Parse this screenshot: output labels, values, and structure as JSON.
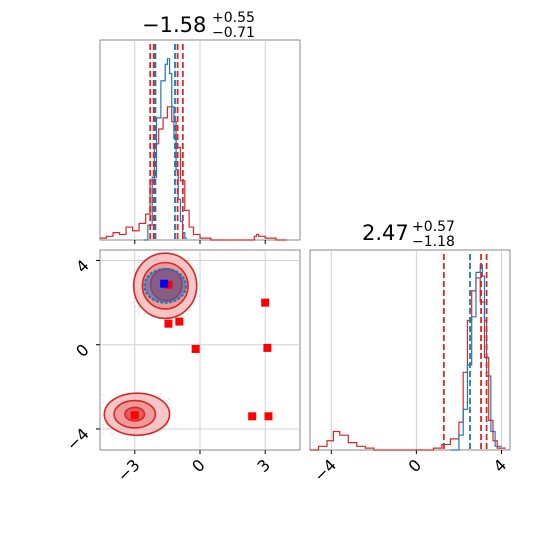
{
  "colors": {
    "primary": "#d62728",
    "secondary": "#1f77b4",
    "marker_red": "#ff0000",
    "marker_blue": "#0000ff",
    "fill_light": "#f5b3b3",
    "fill_mid": "#ee8a8a",
    "fill_dark": "#e04848"
  },
  "chart_data": [
    {
      "type": "histogram",
      "panel": "top-left",
      "title": {
        "median": "−1.58",
        "plus": "+0.55",
        "minus": "−0.71"
      },
      "xlim": [
        -4.6,
        4.6
      ],
      "grid": true,
      "quantiles_red": [
        -2.29,
        -2.13,
        -1.03,
        -0.79
      ],
      "quantiles_blue": [
        -2.05,
        -1.15
      ],
      "series": [
        {
          "name": "",
          "color": "#d62728",
          "x": [
            -4.6,
            -4.3,
            -4.0,
            -3.7,
            -3.4,
            -3.1,
            -2.8,
            -2.5,
            -2.3,
            -2.1,
            -1.9,
            -1.7,
            -1.5,
            -1.3,
            -1.1,
            -0.9,
            -0.7,
            -0.5,
            -0.3,
            0.0,
            0.5,
            1.0,
            1.5,
            2.0,
            2.5,
            2.6,
            2.7,
            3.0,
            3.5,
            4.0
          ],
          "y": [
            0.01,
            0.02,
            0.04,
            0.03,
            0.07,
            0.05,
            0.09,
            0.14,
            0.32,
            0.52,
            0.6,
            0.66,
            0.72,
            0.64,
            0.5,
            0.32,
            0.16,
            0.07,
            0.03,
            0.01,
            0.0,
            0.0,
            0.0,
            0.0,
            0.02,
            0.03,
            0.02,
            0.01,
            0.0,
            0.0
          ]
        },
        {
          "name": "",
          "color": "#1f77b4",
          "x": [
            -2.6,
            -2.4,
            -2.2,
            -2.0,
            -1.8,
            -1.6,
            -1.5,
            -1.4,
            -1.3,
            -1.2,
            -1.1,
            -1.0,
            -0.9,
            -0.8,
            -0.7,
            -0.6
          ],
          "y": [
            0.0,
            0.08,
            0.34,
            0.66,
            0.86,
            0.95,
            0.98,
            0.9,
            0.72,
            0.55,
            0.38,
            0.22,
            0.1,
            0.04,
            0.01,
            0.0
          ]
        }
      ],
      "xticks": [
        -3,
        0,
        3
      ]
    },
    {
      "type": "scatter",
      "panel": "bottom-left",
      "xlim": [
        -4.6,
        4.6
      ],
      "ylim": [
        -5.0,
        4.5
      ],
      "grid": true,
      "xticks": [
        -3,
        0,
        3
      ],
      "yticks": [
        -4,
        0,
        4
      ],
      "xtick_labels": [
        "−3",
        "0",
        "3"
      ],
      "ytick_labels": [
        "−4",
        "0",
        "4"
      ],
      "contours": [
        {
          "level": "outer",
          "cx": -1.6,
          "cy": 2.8,
          "rx": 1.45,
          "ry": 1.55
        },
        {
          "level": "middle",
          "cx": -1.6,
          "cy": 2.8,
          "rx": 1.05,
          "ry": 1.1
        },
        {
          "level": "inner",
          "cx": -1.55,
          "cy": 2.85,
          "rx": 0.72,
          "ry": 0.75
        },
        {
          "level": "outer",
          "cx": -2.9,
          "cy": -3.3,
          "rx": 1.5,
          "ry": 1.0
        },
        {
          "level": "middle",
          "cx": -3.0,
          "cy": -3.3,
          "rx": 0.95,
          "ry": 0.65
        },
        {
          "level": "inner",
          "cx": -3.0,
          "cy": -3.3,
          "rx": 0.45,
          "ry": 0.32
        }
      ],
      "blue_contour": {
        "cx": -1.6,
        "cy": 2.8,
        "rx": 0.95,
        "ry": 0.8
      },
      "red_markers": [
        {
          "x": -1.45,
          "y": 2.85
        },
        {
          "x": -1.45,
          "y": 1.0
        },
        {
          "x": -0.95,
          "y": 1.1
        },
        {
          "x": -0.2,
          "y": -0.2
        },
        {
          "x": 3.0,
          "y": 2.0
        },
        {
          "x": 3.1,
          "y": -0.15
        },
        {
          "x": -3.0,
          "y": -3.35
        },
        {
          "x": 2.4,
          "y": -3.4
        },
        {
          "x": 3.15,
          "y": -3.4
        }
      ],
      "blue_markers": [
        {
          "x": -1.65,
          "y": 2.9
        }
      ]
    },
    {
      "type": "histogram",
      "panel": "bottom-right",
      "title": {
        "median": "2.47",
        "plus": "+0.57",
        "minus": "−1.18"
      },
      "xlim": [
        -5.0,
        4.4
      ],
      "grid": true,
      "xticks": [
        -4,
        0,
        4
      ],
      "xtick_labels": [
        "−4",
        "0",
        "4"
      ],
      "quantiles_red": [
        1.29,
        3.04,
        3.3
      ],
      "quantiles_blue": [
        2.52
      ],
      "series": [
        {
          "name": "",
          "color": "#d62728",
          "x": [
            -5.0,
            -4.6,
            -4.2,
            -3.9,
            -3.6,
            -3.2,
            -2.8,
            -2.4,
            -2.0,
            -1.0,
            0.0,
            0.8,
            1.2,
            1.6,
            2.0,
            2.2,
            2.4,
            2.6,
            2.8,
            3.0,
            3.2,
            3.4,
            3.6,
            3.8,
            4.2
          ],
          "y": [
            0.0,
            0.02,
            0.05,
            0.1,
            0.08,
            0.04,
            0.02,
            0.01,
            0.0,
            0.0,
            0.0,
            0.01,
            0.03,
            0.06,
            0.15,
            0.42,
            0.7,
            0.86,
            0.93,
            0.8,
            0.5,
            0.16,
            0.05,
            0.01,
            0.0
          ]
        },
        {
          "name": "",
          "color": "#1f77b4",
          "x": [
            1.6,
            2.0,
            2.2,
            2.4,
            2.6,
            2.8,
            3.0,
            3.1,
            3.2,
            3.3,
            3.5,
            3.7,
            4.0
          ],
          "y": [
            0.0,
            0.08,
            0.22,
            0.46,
            0.72,
            0.96,
            1.0,
            0.94,
            0.7,
            0.4,
            0.1,
            0.02,
            0.0
          ]
        }
      ]
    }
  ]
}
